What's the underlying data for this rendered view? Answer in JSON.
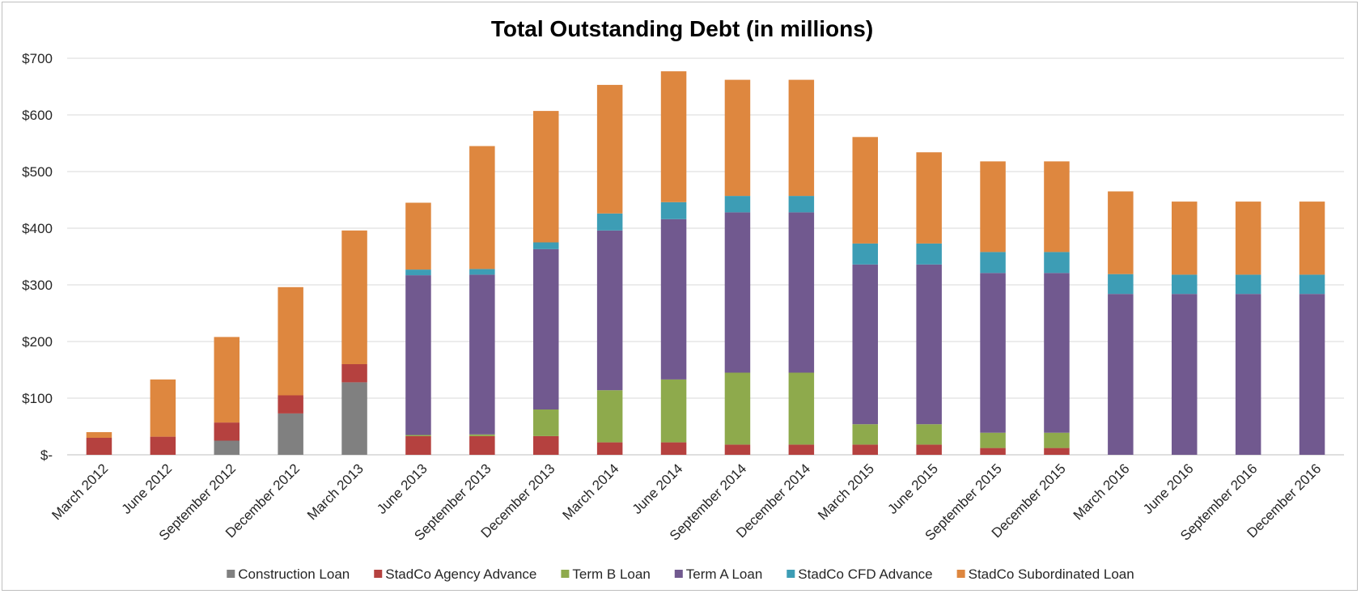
{
  "chart_data": {
    "type": "bar",
    "stacked": true,
    "title": "Total Outstanding Debt (in millions)",
    "xlabel": "",
    "ylabel": "",
    "ylim": [
      0,
      700
    ],
    "y_ticks": [
      0,
      100,
      200,
      300,
      400,
      500,
      600,
      700
    ],
    "y_tick_labels": [
      "$-",
      "$100",
      "$200",
      "$300",
      "$400",
      "$500",
      "$600",
      "$700"
    ],
    "grid": true,
    "legend_position": "bottom",
    "categories": [
      "March 2012",
      "June 2012",
      "September 2012",
      "December 2012",
      "March 2013",
      "June 2013",
      "September 2013",
      "December 2013",
      "March 2014",
      "June 2014",
      "September 2014",
      "December 2014",
      "March 2015",
      "June 2015",
      "September 2015",
      "December 2015",
      "March 2016",
      "June 2016",
      "September 2016",
      "December 2016"
    ],
    "series": [
      {
        "name": "Construction Loan",
        "color": "#808080",
        "values": [
          0,
          0,
          25,
          73,
          128,
          0,
          0,
          0,
          0,
          0,
          0,
          0,
          0,
          0,
          0,
          0,
          0,
          0,
          0,
          0
        ]
      },
      {
        "name": "StadCo Agency Advance",
        "color": "#b5413f",
        "values": [
          30,
          32,
          32,
          32,
          32,
          33,
          33,
          33,
          22,
          22,
          18,
          18,
          18,
          18,
          12,
          12,
          0,
          0,
          0,
          0
        ]
      },
      {
        "name": "Term B Loan",
        "color": "#8eaa4c",
        "values": [
          0,
          0,
          0,
          0,
          0,
          2,
          3,
          47,
          92,
          111,
          127,
          127,
          36,
          36,
          27,
          27,
          0,
          0,
          0,
          0
        ]
      },
      {
        "name": "Term A Loan",
        "color": "#71598f",
        "values": [
          0,
          0,
          0,
          0,
          0,
          282,
          282,
          283,
          282,
          283,
          283,
          283,
          282,
          282,
          282,
          282,
          284,
          284,
          284,
          284
        ]
      },
      {
        "name": "StadCo CFD Advance",
        "color": "#3d9db5",
        "values": [
          0,
          0,
          0,
          0,
          0,
          10,
          10,
          12,
          30,
          30,
          29,
          29,
          37,
          37,
          37,
          37,
          35,
          34,
          34,
          34
        ]
      },
      {
        "name": "StadCo Subordinated Loan",
        "color": "#de873f",
        "values": [
          10,
          101,
          151,
          191,
          236,
          118,
          217,
          232,
          227,
          231,
          205,
          205,
          188,
          161,
          160,
          160,
          146,
          129,
          129,
          129
        ]
      }
    ]
  }
}
